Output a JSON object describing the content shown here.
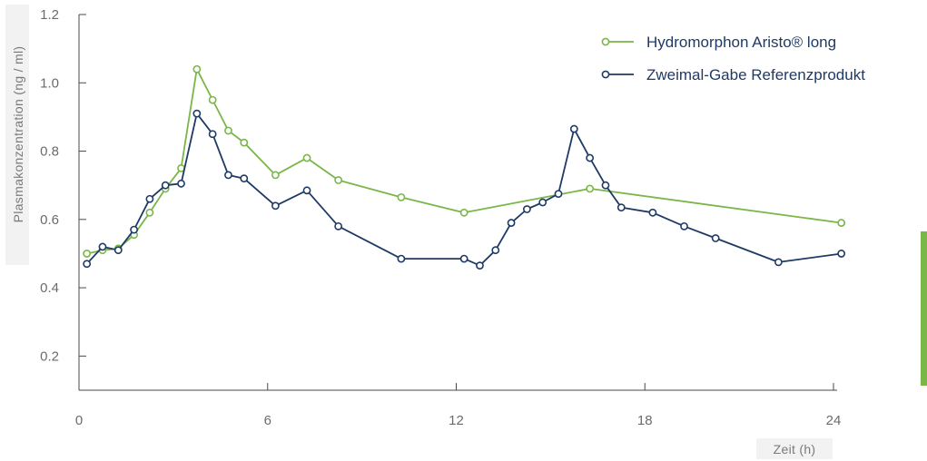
{
  "chart_data": {
    "type": "line",
    "xlabel": "Zeit (h)",
    "ylabel": "Plasmakonzentration (ng / ml)",
    "xlim": [
      0,
      24
    ],
    "ylim": [
      0.1,
      1.2
    ],
    "x_ticks": [
      0,
      6,
      12,
      18,
      24
    ],
    "y_ticks": [
      0.2,
      0.4,
      0.6,
      0.8,
      1.0,
      1.2
    ],
    "y_tick_labels": [
      "0.2",
      "0.4",
      "0.6",
      "0.8",
      "1.0",
      "1.2"
    ],
    "grid": false,
    "legend_position": "top-right",
    "series": [
      {
        "name": "Hydromorphon Aristo® long",
        "color": "#7ab648",
        "x": [
          0.25,
          0.75,
          1.25,
          1.75,
          2.25,
          2.75,
          3.25,
          3.75,
          4.25,
          4.75,
          5.25,
          6.25,
          7.25,
          8.25,
          10.25,
          12.25,
          16.25,
          24.25
        ],
        "y": [
          0.5,
          0.51,
          0.515,
          0.555,
          0.62,
          0.69,
          0.75,
          1.04,
          0.95,
          0.86,
          0.825,
          0.73,
          0.78,
          0.715,
          0.665,
          0.62,
          0.69,
          0.59
        ]
      },
      {
        "name": "Zweimal-Gabe Referenzprodukt",
        "color": "#1e3a66",
        "x": [
          0.25,
          0.75,
          1.25,
          1.75,
          2.25,
          2.75,
          3.25,
          3.75,
          4.25,
          4.75,
          5.25,
          6.25,
          7.25,
          8.25,
          10.25,
          12.25,
          12.75,
          13.25,
          13.75,
          14.25,
          14.75,
          15.25,
          15.75,
          16.25,
          16.75,
          17.25,
          18.25,
          19.25,
          20.25,
          22.25,
          24.25
        ],
        "y": [
          0.47,
          0.52,
          0.51,
          0.57,
          0.66,
          0.7,
          0.705,
          0.91,
          0.85,
          0.73,
          0.72,
          0.64,
          0.685,
          0.58,
          0.485,
          0.485,
          0.465,
          0.51,
          0.59,
          0.63,
          0.65,
          0.675,
          0.865,
          0.78,
          0.7,
          0.635,
          0.62,
          0.58,
          0.545,
          0.475,
          0.5
        ]
      }
    ],
    "annotations": [
      {
        "name": "right-edge-accent-bar",
        "color": "#7ab648"
      }
    ]
  }
}
